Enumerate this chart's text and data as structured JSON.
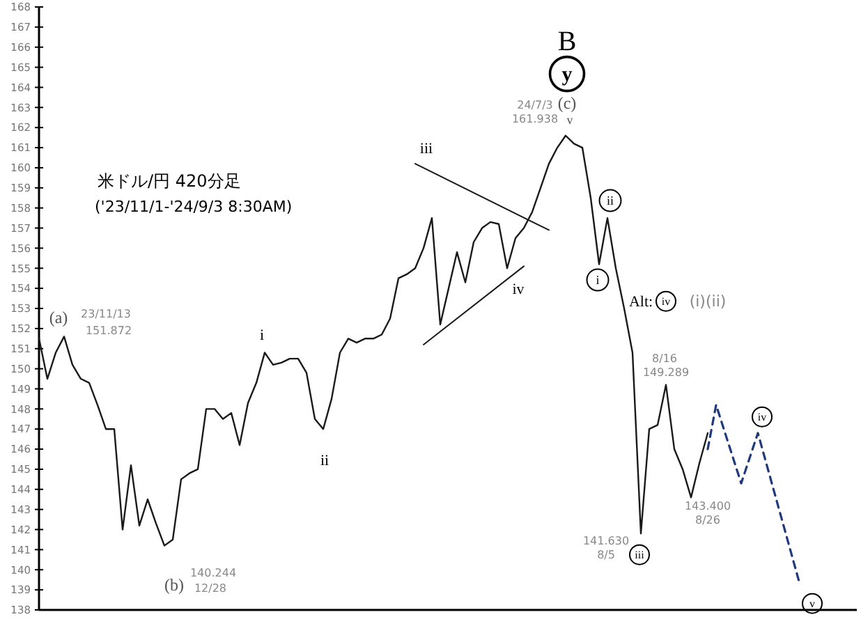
{
  "chart_data": {
    "type": "line",
    "title": "米ドル/円 420分足",
    "subtitle": "('23/11/1-'24/9/3 8:30AM)",
    "categories": [
      null,
      null,
      null,
      null,
      null,
      null,
      null,
      null,
      null,
      null,
      null,
      null,
      null,
      null,
      null,
      null,
      null,
      null,
      null,
      null,
      null,
      null,
      null,
      null,
      null,
      null,
      null,
      null,
      null,
      null,
      null,
      null,
      null,
      null,
      null,
      null,
      null,
      null,
      null,
      null,
      null,
      null,
      null,
      null,
      null,
      null,
      null,
      null,
      null,
      null,
      null,
      null,
      null,
      null,
      null,
      null,
      null,
      null,
      null,
      null,
      null,
      null,
      null,
      null,
      null,
      null,
      null,
      null,
      null,
      null,
      null,
      null,
      null,
      null,
      null,
      null,
      null,
      null,
      null,
      null,
      null,
      null,
      null,
      null,
      null,
      null,
      null,
      null,
      null,
      null,
      null,
      null,
      null,
      null,
      null,
      null,
      null,
      null
    ],
    "series": [
      {
        "color": "#1a1a1a",
        "line_style": "solid",
        "values": [
          151.5,
          149.5,
          150.8,
          151.6,
          150.2,
          149.5,
          149.3,
          148.2,
          147,
          147,
          142,
          145.2,
          142.2,
          143.5,
          142.3,
          141.2,
          141.5,
          144.5,
          144.8,
          145,
          148,
          148,
          147.5,
          147.8,
          146.2,
          148.3,
          149.3,
          150.8,
          150.2,
          150.3,
          150.5,
          150.5,
          149.8,
          147.5,
          147,
          148.5,
          150.8,
          151.5,
          151.3,
          151.5,
          151.5,
          151.7,
          152.5,
          154.5,
          154.7,
          155,
          156,
          157.5,
          152.2,
          154,
          155.8,
          154.3,
          156.3,
          157,
          157.3,
          157.2,
          155,
          156.5,
          157,
          157.8,
          159,
          160.2,
          161,
          161.6,
          161.2,
          161,
          158.5,
          155.2,
          157.5,
          155,
          153,
          150.8,
          141.8,
          147,
          147.2,
          149.2,
          146,
          145,
          143.6,
          145.3,
          146.8,
          null,
          null,
          null,
          null,
          null,
          null,
          null,
          null,
          null,
          null,
          null,
          null,
          null,
          null,
          null,
          null,
          null
        ]
      },
      {
        "color": "#1f3a7a",
        "line_style": "dashed",
        "values": [
          null,
          null,
          null,
          null,
          null,
          null,
          null,
          null,
          null,
          null,
          null,
          null,
          null,
          null,
          null,
          null,
          null,
          null,
          null,
          null,
          null,
          null,
          null,
          null,
          null,
          null,
          null,
          null,
          null,
          null,
          null,
          null,
          null,
          null,
          null,
          null,
          null,
          null,
          null,
          null,
          null,
          null,
          null,
          null,
          null,
          null,
          null,
          null,
          null,
          null,
          null,
          null,
          null,
          null,
          null,
          null,
          null,
          null,
          null,
          null,
          null,
          null,
          null,
          null,
          null,
          null,
          null,
          null,
          null,
          null,
          null,
          null,
          null,
          null,
          null,
          null,
          null,
          null,
          null,
          null,
          146.0,
          148.2,
          null,
          null,
          144.3,
          null,
          146.8,
          null,
          null,
          null,
          null,
          139.3,
          null,
          null,
          null,
          null,
          null,
          null
        ]
      },
      {
        "color": "#1a1a1a",
        "line_style": "solid",
        "values": [
          null,
          null,
          null,
          null,
          null,
          null,
          null,
          null,
          null,
          null,
          null,
          null,
          null,
          null,
          null,
          null,
          null,
          null,
          null,
          null,
          null,
          null,
          null,
          null,
          null,
          null,
          null,
          null,
          null,
          null,
          null,
          null,
          null,
          null,
          null,
          null,
          null,
          null,
          null,
          null,
          null,
          null,
          null,
          null,
          null,
          160.2,
          null,
          null,
          null,
          null,
          null,
          null,
          null,
          null,
          null,
          null,
          null,
          null,
          null,
          null,
          null,
          156.9,
          null,
          null,
          null,
          null,
          null,
          null,
          null,
          null,
          null,
          null,
          null,
          null,
          null,
          null,
          null,
          null,
          null,
          null,
          null,
          null,
          null,
          null,
          null,
          null,
          null,
          null,
          null,
          null,
          null,
          null,
          null,
          null,
          null,
          null,
          null,
          null
        ]
      },
      {
        "color": "#1a1a1a",
        "line_style": "solid",
        "values": [
          null,
          null,
          null,
          null,
          null,
          null,
          null,
          null,
          null,
          null,
          null,
          null,
          null,
          null,
          null,
          null,
          null,
          null,
          null,
          null,
          null,
          null,
          null,
          null,
          null,
          null,
          null,
          null,
          null,
          null,
          null,
          null,
          null,
          null,
          null,
          null,
          null,
          null,
          null,
          null,
          null,
          null,
          null,
          null,
          null,
          null,
          151.2,
          null,
          null,
          null,
          null,
          null,
          null,
          null,
          null,
          null,
          null,
          null,
          155.1,
          null,
          null,
          null,
          null,
          null,
          null,
          null,
          null,
          null,
          null,
          null,
          null,
          null,
          null,
          null,
          null,
          null,
          null,
          null,
          null,
          null,
          null,
          null,
          null,
          null,
          null,
          null,
          null,
          null,
          null,
          null,
          null,
          null,
          null,
          null,
          null,
          null,
          null,
          null
        ]
      }
    ],
    "ylim": [
      138,
      168
    ],
    "yticks": [
      138,
      139,
      140,
      141,
      142,
      143,
      144,
      145,
      146,
      147,
      148,
      149,
      150,
      151,
      152,
      153,
      154,
      155,
      156,
      157,
      158,
      159,
      160,
      161,
      162,
      163,
      164,
      165,
      166,
      167,
      168
    ],
    "tick_labels": "y",
    "grid": false,
    "marker": "none",
    "annotations": [
      "B",
      "y",
      "(c)",
      "v",
      "24/7/3",
      "161.938",
      "iii",
      "iv",
      "(a)",
      "23/11/13",
      "151.872",
      "i",
      "ii",
      "(b)",
      "140.244",
      "12/28",
      "ii",
      "i",
      "Alt:",
      "iv",
      "(i)(ii)",
      "8/16",
      "149.289",
      "iv",
      "141.630",
      "8/5",
      "iii",
      "143.400",
      "8/26",
      "v"
    ]
  }
}
